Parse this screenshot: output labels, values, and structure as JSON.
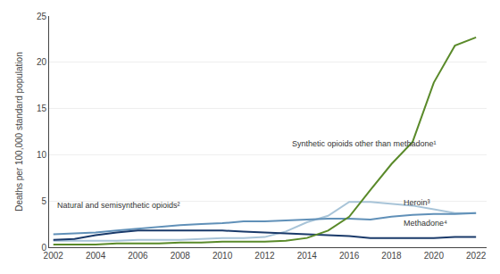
{
  "chart_data": {
    "type": "line",
    "ylabel": "Deaths per 100,000 standard population",
    "x": [
      2002,
      2003,
      2004,
      2005,
      2006,
      2007,
      2008,
      2009,
      2010,
      2011,
      2012,
      2013,
      2014,
      2015,
      2016,
      2017,
      2018,
      2019,
      2020,
      2021,
      2022
    ],
    "series": [
      {
        "color": "#a8c4d8",
        "values": [
          0.7,
          0.7,
          0.7,
          0.7,
          0.8,
          0.8,
          0.8,
          0.9,
          1.0,
          1.0,
          1.1,
          1.7,
          2.7,
          3.4,
          4.9,
          4.9,
          4.7,
          4.5,
          4.1,
          3.7,
          3.7
        ]
      },
      {
        "color": "#6090b8",
        "values": [
          1.4,
          1.5,
          1.6,
          1.8,
          2.0,
          2.2,
          2.4,
          2.5,
          2.6,
          2.8,
          2.8,
          2.9,
          3.0,
          3.1,
          3.1,
          3.0,
          3.3,
          3.5,
          3.6,
          3.6,
          3.7
        ]
      },
      {
        "color": "#1a3a6a",
        "values": [
          0.8,
          0.9,
          1.3,
          1.6,
          1.8,
          1.8,
          1.8,
          1.8,
          1.8,
          1.7,
          1.6,
          1.5,
          1.4,
          1.3,
          1.2,
          1.0,
          1.0,
          1.0,
          1.0,
          1.1,
          1.1
        ]
      },
      {
        "color": "#5a8a2a",
        "values": [
          0.3,
          0.3,
          0.3,
          0.4,
          0.4,
          0.4,
          0.5,
          0.5,
          0.6,
          0.6,
          0.6,
          0.7,
          1.0,
          1.8,
          3.3,
          6.2,
          9.0,
          11.4,
          17.8,
          21.8,
          22.7
        ]
      }
    ],
    "annotations": [
      {
        "text": "Synthetic opioids other than methadone¹",
        "x": 2013.2,
        "y": 10.5
      },
      {
        "text": "Natural and semisynthetic opioids²",
        "x": 2002.1,
        "y": 3.85
      },
      {
        "text": "Heroin³",
        "x": 2018.5,
        "y": 4.15
      },
      {
        "text": "Methadone⁴",
        "x": 2018.5,
        "y": 1.9
      }
    ],
    "xlim": [
      2001.8,
      2022.5
    ],
    "xticks": [
      2002,
      2004,
      2006,
      2008,
      2010,
      2012,
      2014,
      2016,
      2018,
      2020,
      2022
    ],
    "ylim": [
      0,
      25
    ],
    "yticks": [
      0,
      5,
      10,
      15,
      20,
      25
    ],
    "grid": "y"
  }
}
